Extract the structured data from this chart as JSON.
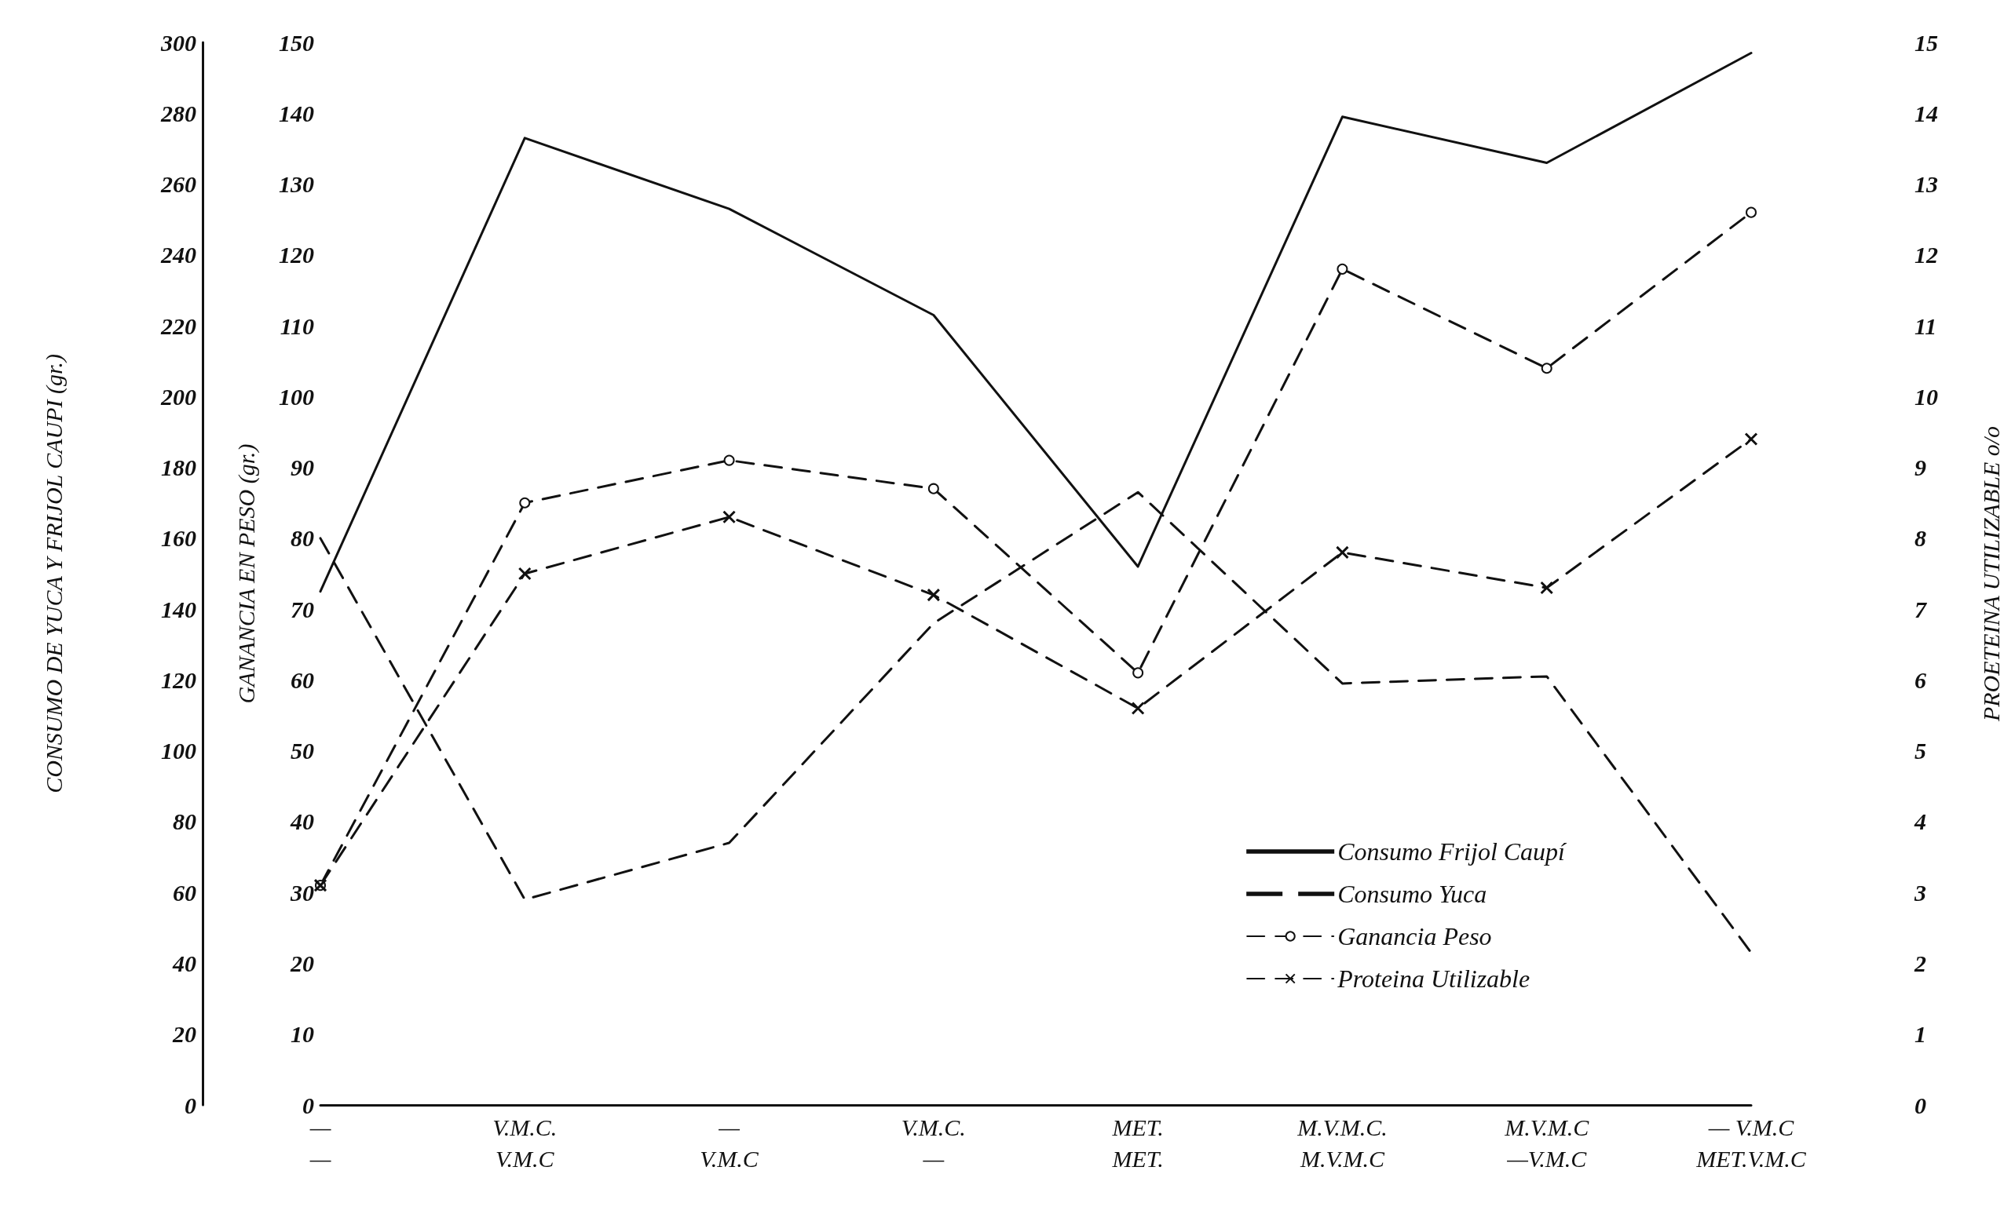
{
  "chart_data": {
    "type": "line",
    "categories": [
      "—\n—",
      "V.M.C.\nV.M.C",
      "—\nV.M.C",
      "V.M.C.\n—",
      "MET.\nMET.",
      "M.V.M.C.\nM.V.M.C",
      "M.V.M.C\n—V.M.C",
      "— V.M.C\nMET.V.M.C"
    ],
    "ylabel": "CONSUMO DE YUCA Y FRIJOL CAUPI (gr.)",
    "y2label": "GANANCIA EN PESO (gr.)",
    "y3label": "PROETEINA UTILIZABLE o/o",
    "ylim": [
      0,
      300
    ],
    "yticks": [
      0,
      20,
      40,
      60,
      80,
      100,
      120,
      140,
      160,
      180,
      200,
      220,
      240,
      260,
      280,
      300
    ],
    "y2lim": [
      0,
      150
    ],
    "y2ticks": [
      0,
      10,
      20,
      30,
      40,
      50,
      60,
      70,
      80,
      90,
      100,
      110,
      120,
      130,
      140,
      150
    ],
    "y3lim": [
      0,
      15
    ],
    "y3ticks": [
      0,
      1,
      2,
      3,
      4,
      5,
      6,
      7,
      8,
      9,
      10,
      11,
      12,
      13,
      14,
      15
    ],
    "grid": false,
    "legend": "bottom right",
    "series": [
      {
        "name": "Consumo Frijol Caupí",
        "color": "#111111",
        "line_style": "solid",
        "marker": "none",
        "values": [
          145,
          273,
          253,
          223,
          152,
          279,
          266,
          297
        ]
      },
      {
        "name": "Consumo Yuca",
        "color": "#111111",
        "line_style": "dashed",
        "marker": "none",
        "values": [
          160,
          58,
          74,
          136,
          173,
          119,
          121,
          43
        ]
      },
      {
        "name": "Ganancia Peso",
        "color": "#111111",
        "line_style": "dashed",
        "marker": "circle",
        "axis": "y2",
        "values": [
          31,
          85,
          91,
          87,
          61,
          118,
          104,
          126
        ]
      },
      {
        "name": "Proteina Utilizable",
        "color": "#111111",
        "line_style": "dashed",
        "marker": "cross",
        "axis": "y3",
        "values": [
          3.1,
          7.5,
          8.3,
          7.2,
          5.6,
          7.8,
          7.3,
          9.4
        ]
      }
    ]
  }
}
